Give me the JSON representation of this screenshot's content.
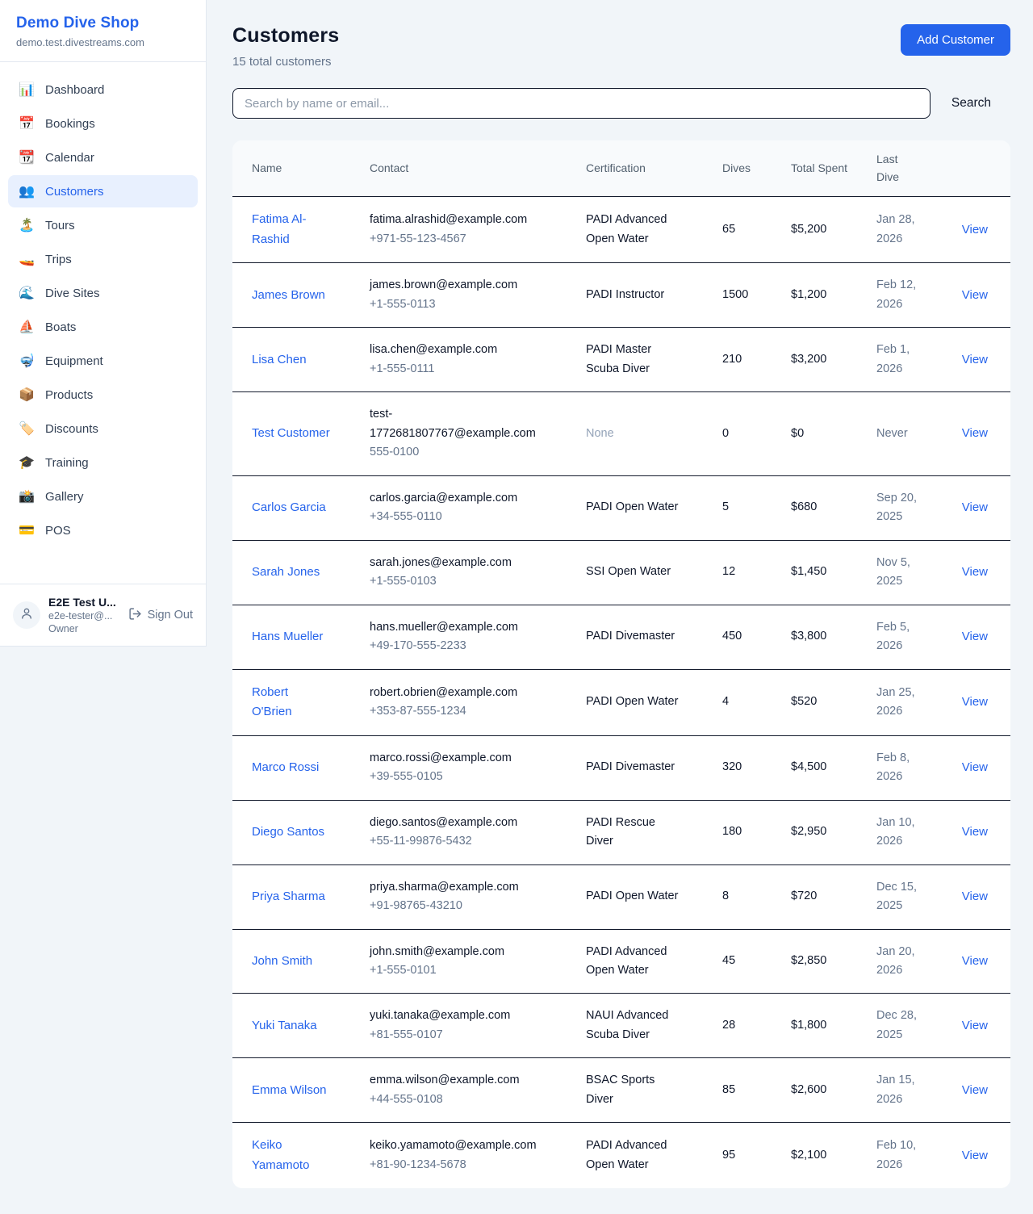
{
  "colors": {
    "accent_blue": "#2563eb",
    "active_item_bg": "#e8f0fe",
    "page_bg": "#f1f5f9",
    "card_bg": "#ffffff",
    "table_header_bg": "#f8fafc",
    "row_divider": "#141b2d",
    "text_dark": "#0f172a",
    "text_gray": "#64748b",
    "text_muted": "#94a3b8"
  },
  "sidebar": {
    "title": "Demo Dive Shop",
    "domain": "demo.test.divestreams.com",
    "items": [
      {
        "label": "Dashboard",
        "icon_name": "bar-chart-icon",
        "glyph": "📊",
        "active": false
      },
      {
        "label": "Bookings",
        "icon_name": "calendar-date-icon",
        "glyph": "📅",
        "active": false
      },
      {
        "label": "Calendar",
        "icon_name": "tear-off-calendar-icon",
        "glyph": "📆",
        "active": false
      },
      {
        "label": "Customers",
        "icon_name": "people-icon",
        "glyph": "👥",
        "active": true
      },
      {
        "label": "Tours",
        "icon_name": "island-icon",
        "glyph": "🏝️",
        "active": false
      },
      {
        "label": "Trips",
        "icon_name": "speedboat-icon",
        "glyph": "🚤",
        "active": false
      },
      {
        "label": "Dive Sites",
        "icon_name": "wave-icon",
        "glyph": "🌊",
        "active": false
      },
      {
        "label": "Boats",
        "icon_name": "sailboat-icon",
        "glyph": "⛵",
        "active": false
      },
      {
        "label": "Equipment",
        "icon_name": "diving-mask-icon",
        "glyph": "🤿",
        "active": false
      },
      {
        "label": "Products",
        "icon_name": "package-icon",
        "glyph": "📦",
        "active": false
      },
      {
        "label": "Discounts",
        "icon_name": "label-tag-icon",
        "glyph": "🏷️",
        "active": false
      },
      {
        "label": "Training",
        "icon_name": "graduation-cap-icon",
        "glyph": "🎓",
        "active": false
      },
      {
        "label": "Gallery",
        "icon_name": "camera-flash-icon",
        "glyph": "📸",
        "active": false
      },
      {
        "label": "POS",
        "icon_name": "credit-card-icon",
        "glyph": "💳",
        "active": false
      }
    ],
    "user": {
      "name": "E2E Test U...",
      "email": "e2e-tester@...",
      "role": "Owner",
      "sign_out_label": "Sign Out"
    }
  },
  "header": {
    "title": "Customers",
    "subtitle": "15 total customers",
    "add_button_label": "Add Customer"
  },
  "search": {
    "placeholder": "Search by name or email...",
    "button_label": "Search"
  },
  "table": {
    "columns": [
      "Name",
      "Contact",
      "Certification",
      "Dives",
      "Total Spent",
      "Last Dive",
      ""
    ],
    "view_label": "View",
    "rows": [
      {
        "name": "Fatima Al-Rashid",
        "email": "fatima.alrashid@example.com",
        "phone": "+971-55-123-4567",
        "certification": "PADI Advanced Open Water",
        "dives": "65",
        "total_spent": "$5,200",
        "last_dive": "Jan 28, 2026"
      },
      {
        "name": "James Brown",
        "email": "james.brown@example.com",
        "phone": "+1-555-0113",
        "certification": "PADI Instructor",
        "dives": "1500",
        "total_spent": "$1,200",
        "last_dive": "Feb 12, 2026"
      },
      {
        "name": "Lisa Chen",
        "email": "lisa.chen@example.com",
        "phone": "+1-555-0111",
        "certification": "PADI Master Scuba Diver",
        "dives": "210",
        "total_spent": "$3,200",
        "last_dive": "Feb 1, 2026"
      },
      {
        "name": "Test Customer",
        "email": "test-1772681807767@example.com",
        "phone": "555-0100",
        "certification": "None",
        "dives": "0",
        "total_spent": "$0",
        "last_dive": "Never"
      },
      {
        "name": "Carlos Garcia",
        "email": "carlos.garcia@example.com",
        "phone": "+34-555-0110",
        "certification": "PADI Open Water",
        "dives": "5",
        "total_spent": "$680",
        "last_dive": "Sep 20, 2025"
      },
      {
        "name": "Sarah Jones",
        "email": "sarah.jones@example.com",
        "phone": "+1-555-0103",
        "certification": "SSI Open Water",
        "dives": "12",
        "total_spent": "$1,450",
        "last_dive": "Nov 5, 2025"
      },
      {
        "name": "Hans Mueller",
        "email": "hans.mueller@example.com",
        "phone": "+49-170-555-2233",
        "certification": "PADI Divemaster",
        "dives": "450",
        "total_spent": "$3,800",
        "last_dive": "Feb 5, 2026"
      },
      {
        "name": "Robert O'Brien",
        "email": "robert.obrien@example.com",
        "phone": "+353-87-555-1234",
        "certification": "PADI Open Water",
        "dives": "4",
        "total_spent": "$520",
        "last_dive": "Jan 25, 2026"
      },
      {
        "name": "Marco Rossi",
        "email": "marco.rossi@example.com",
        "phone": "+39-555-0105",
        "certification": "PADI Divemaster",
        "dives": "320",
        "total_spent": "$4,500",
        "last_dive": "Feb 8, 2026"
      },
      {
        "name": "Diego Santos",
        "email": "diego.santos@example.com",
        "phone": "+55-11-99876-5432",
        "certification": "PADI Rescue Diver",
        "dives": "180",
        "total_spent": "$2,950",
        "last_dive": "Jan 10, 2026"
      },
      {
        "name": "Priya Sharma",
        "email": "priya.sharma@example.com",
        "phone": "+91-98765-43210",
        "certification": "PADI Open Water",
        "dives": "8",
        "total_spent": "$720",
        "last_dive": "Dec 15, 2025"
      },
      {
        "name": "John Smith",
        "email": "john.smith@example.com",
        "phone": "+1-555-0101",
        "certification": "PADI Advanced Open Water",
        "dives": "45",
        "total_spent": "$2,850",
        "last_dive": "Jan 20, 2026"
      },
      {
        "name": "Yuki Tanaka",
        "email": "yuki.tanaka@example.com",
        "phone": "+81-555-0107",
        "certification": "NAUI Advanced Scuba Diver",
        "dives": "28",
        "total_spent": "$1,800",
        "last_dive": "Dec 28, 2025"
      },
      {
        "name": "Emma Wilson",
        "email": "emma.wilson@example.com",
        "phone": "+44-555-0108",
        "certification": "BSAC Sports Diver",
        "dives": "85",
        "total_spent": "$2,600",
        "last_dive": "Jan 15, 2026"
      },
      {
        "name": "Keiko Yamamoto",
        "email": "keiko.yamamoto@example.com",
        "phone": "+81-90-1234-5678",
        "certification": "PADI Advanced Open Water",
        "dives": "95",
        "total_spent": "$2,100",
        "last_dive": "Feb 10, 2026"
      }
    ]
  }
}
